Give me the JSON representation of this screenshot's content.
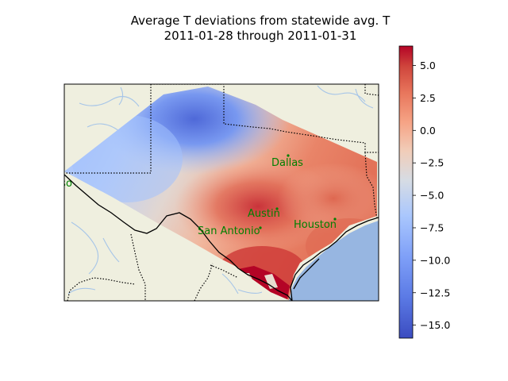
{
  "title_lines": [
    "Average T deviations from statewide avg. T",
    "2011-01-28 through 2011-01-31"
  ],
  "colors": {
    "land": "#efefdf",
    "ocean": "#97b6e1",
    "river": "#a6c5e8",
    "city": "#008000",
    "cmap": [
      "#3b4cc0",
      "#6788ee",
      "#9abbff",
      "#c9d7f0",
      "#edd1c2",
      "#f7a889",
      "#e26952",
      "#b40426"
    ]
  },
  "cities": [
    {
      "name": "El Paso",
      "lon": -106.44,
      "lat": 31.76
    },
    {
      "name": "Dallas",
      "lon": -96.8,
      "lat": 32.78
    },
    {
      "name": "Austin",
      "lon": -97.74,
      "lat": 30.27
    },
    {
      "name": "Houston",
      "lon": -95.37,
      "lat": 29.76
    },
    {
      "name": "San Antonio",
      "lon": -98.49,
      "lat": 29.42
    }
  ],
  "colorbar": {
    "vmin": -16,
    "vmax": 6.5,
    "ticks": [
      5.0,
      2.5,
      0.0,
      -2.5,
      -5.0,
      -7.5,
      -10.0,
      -12.5,
      -15.0
    ],
    "tick_labels": [
      "5.0",
      "2.5",
      "0.0",
      "−2.5",
      "−5.0",
      "−7.5",
      "−10.0",
      "−12.5",
      "−15.0"
    ]
  },
  "map_extent": {
    "lon": [
      -106.0,
      -93.0
    ],
    "lat": [
      25.5,
      34.5
    ]
  }
}
